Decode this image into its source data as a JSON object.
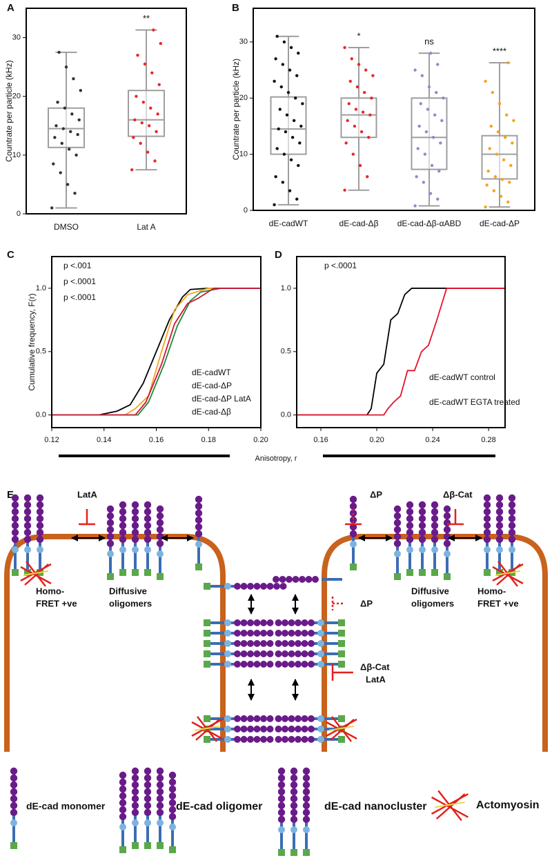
{
  "panels": [
    "A",
    "B",
    "C",
    "D",
    "E"
  ],
  "chart_data": [
    {
      "type": "box",
      "ylabel": "Countrate per particle (kHz)",
      "categories": [
        "DMSO",
        "Lat A"
      ],
      "ylim": [
        0,
        35
      ],
      "yticks": [
        0,
        10,
        20,
        30
      ],
      "box_color": "#9e9e9e",
      "boxes": [
        {
          "min": 1,
          "q1": 11.3,
          "median": 14.5,
          "q3": 18,
          "max": 27.5,
          "color": "#333333",
          "points": [
            1,
            3.5,
            5,
            7,
            8.5,
            10,
            11,
            12,
            13,
            13.5,
            14,
            14.5,
            15,
            16,
            17,
            18,
            19,
            21,
            23,
            25,
            27.5
          ]
        },
        {
          "min": 7.5,
          "q1": 13.2,
          "median": 16,
          "q3": 21,
          "max": 31.3,
          "color": "#e8282b",
          "annotation": "**",
          "points": [
            7.5,
            9,
            10.5,
            12,
            13,
            14,
            15,
            15.5,
            16,
            17,
            18,
            19,
            20,
            22,
            24,
            25.5,
            27,
            29,
            31.3
          ]
        }
      ]
    },
    {
      "type": "box",
      "ylabel": "Countrate per particle (kHz)",
      "categories": [
        "dE-cadWT",
        "dE-cad-Δβ",
        "dE-cad-Δβ-αABD",
        "dE-cad-ΔP"
      ],
      "ylim": [
        0,
        36
      ],
      "yticks": [
        0,
        10,
        20,
        30
      ],
      "box_color": "#9e9e9e",
      "boxes": [
        {
          "min": 1,
          "q1": 10,
          "median": 14.5,
          "q3": 20.2,
          "max": 31,
          "color": "#111111",
          "points": [
            1,
            2,
            3.5,
            5,
            6,
            8,
            9,
            10,
            11,
            12,
            13,
            14,
            14.5,
            15,
            16,
            17,
            18,
            19,
            20,
            21,
            22,
            23,
            24,
            25,
            26,
            27,
            28,
            29,
            30,
            31
          ]
        },
        {
          "min": 3.6,
          "q1": 13,
          "median": 17,
          "q3": 20,
          "max": 29,
          "color": "#e8282b",
          "annotation": "*",
          "points": [
            3.6,
            6,
            8,
            10,
            12,
            13,
            14,
            15,
            16,
            17,
            17.5,
            18,
            19,
            20,
            21,
            22,
            23,
            24,
            25,
            26,
            27,
            29
          ]
        },
        {
          "min": 0.8,
          "q1": 7.3,
          "median": 13,
          "q3": 20,
          "max": 28,
          "color": "#9488c8",
          "annotation": "ns",
          "points": [
            0.8,
            2,
            3,
            5,
            6,
            7,
            8,
            10,
            11,
            12,
            13,
            14,
            15,
            16,
            17,
            18,
            19,
            20,
            21,
            22,
            24,
            25,
            26,
            28
          ]
        },
        {
          "min": 0.6,
          "q1": 5.6,
          "median": 10,
          "q3": 13.3,
          "max": 26.3,
          "color": "#f5a31a",
          "annotation": "****",
          "points": [
            0.6,
            1.5,
            2.5,
            3.5,
            4.5,
            5,
            5.5,
            6,
            7,
            8,
            9,
            10,
            11,
            12,
            13,
            14,
            15,
            16,
            17,
            19,
            21,
            23,
            26.3
          ]
        }
      ]
    },
    {
      "type": "line",
      "ylabel": "Cumulative frequency, F(r)",
      "xlabel": "Anisotropy, r",
      "xlim": [
        0.12,
        0.2
      ],
      "ylim": [
        -0.1,
        1.25
      ],
      "xticks": [
        0.12,
        0.14,
        0.16,
        0.18,
        {
          "value": 0.2,
          "label": "0.20"
        }
      ],
      "yticks": [
        {
          "value": 0,
          "label": "0.0"
        },
        0.5,
        {
          "value": 1,
          "label": "1.0"
        }
      ],
      "annotations": [
        {
          "text": "p <.001",
          "color": "#f5a31a"
        },
        {
          "text": "p <.0001",
          "color": "#1e8a3a"
        },
        {
          "text": "p <.0001",
          "color": "#d0103a"
        }
      ],
      "series": [
        {
          "name": "dE-cadWT",
          "color": "#000000",
          "x": [
            0.12,
            0.138,
            0.145,
            0.15,
            0.155,
            0.16,
            0.165,
            0.17,
            0.173,
            0.18,
            0.2
          ],
          "values": [
            0,
            0,
            0.03,
            0.08,
            0.25,
            0.5,
            0.75,
            0.93,
            0.99,
            1,
            1
          ]
        },
        {
          "name": "dE-cad-ΔP",
          "color": "#f5a31a",
          "x": [
            0.12,
            0.148,
            0.152,
            0.157,
            0.162,
            0.167,
            0.172,
            0.18,
            0.2
          ],
          "values": [
            0,
            0,
            0.05,
            0.15,
            0.5,
            0.83,
            0.95,
            1,
            1
          ]
        },
        {
          "name": "dE-cad-ΔP LatA",
          "color": "#1e8a3a",
          "x": [
            0.12,
            0.153,
            0.157,
            0.163,
            0.168,
            0.173,
            0.177,
            0.185,
            0.2
          ],
          "values": [
            0,
            0,
            0.1,
            0.4,
            0.7,
            0.9,
            0.97,
            1,
            1
          ]
        },
        {
          "name": "dE-cad-Δβ",
          "color": "#d0103a",
          "x": [
            0.12,
            0.152,
            0.156,
            0.162,
            0.167,
            0.172,
            0.176,
            0.182,
            0.2
          ],
          "values": [
            0,
            0,
            0.1,
            0.4,
            0.72,
            0.88,
            0.92,
            1,
            1
          ]
        }
      ]
    },
    {
      "type": "line",
      "xlim": [
        0.1427,
        0.2918
      ],
      "ylim": [
        -0.1,
        1.25
      ],
      "xticks": [
        0.16,
        {
          "value": 0.2,
          "label": "0.20"
        },
        0.24,
        0.28
      ],
      "yticks": [
        {
          "value": 0,
          "label": "0.0"
        },
        0.5,
        {
          "value": 1,
          "label": "1.0"
        }
      ],
      "annotations": [
        {
          "text": "p <.0001",
          "color": "#d0103a"
        }
      ],
      "series": [
        {
          "name": "dE-cadWT control",
          "color": "#000000",
          "x": [
            0.1427,
            0.193,
            0.196,
            0.2,
            0.205,
            0.21,
            0.215,
            0.22,
            0.225,
            0.2918
          ],
          "values": [
            0,
            0,
            0.05,
            0.33,
            0.4,
            0.75,
            0.8,
            0.95,
            1,
            1
          ]
        },
        {
          "name": "dE-cadWT EGTA treated",
          "color": "#e8102a",
          "x": [
            0.1427,
            0.205,
            0.208,
            0.212,
            0.217,
            0.222,
            0.227,
            0.232,
            0.237,
            0.243,
            0.25,
            0.2918
          ],
          "values": [
            0,
            0,
            0.05,
            0.1,
            0.15,
            0.35,
            0.35,
            0.5,
            0.55,
            0.75,
            1,
            1
          ]
        }
      ]
    }
  ],
  "diagram": {
    "latA_top": "LatA",
    "homo_left": [
      "Homo-",
      "FRET +ve"
    ],
    "diffusive_left": [
      "Diffusive",
      "oligomers"
    ],
    "dP_top": "ΔP",
    "dbcat_top": "Δβ-Cat",
    "dP_mid": "ΔP",
    "dbcat_mid": [
      "Δβ-Cat",
      "LatA"
    ],
    "diffusive_right": [
      "Diffusive",
      "oligomers"
    ],
    "homo_right": [
      "Homo-",
      "FRET +ve"
    ],
    "legend": [
      "dE-cad monomer",
      "dE-cad oligomer",
      "dE-cad nanocluster",
      "Actomyosin"
    ]
  }
}
